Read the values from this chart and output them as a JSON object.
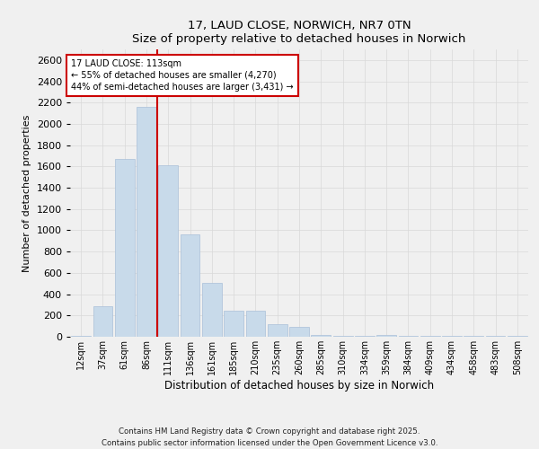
{
  "title": "17, LAUD CLOSE, NORWICH, NR7 0TN",
  "subtitle": "Size of property relative to detached houses in Norwich",
  "xlabel": "Distribution of detached houses by size in Norwich",
  "ylabel": "Number of detached properties",
  "bar_color": "#c8daea",
  "bar_edge_color": "#aac0d8",
  "categories": [
    "12sqm",
    "37sqm",
    "61sqm",
    "86sqm",
    "111sqm",
    "136sqm",
    "161sqm",
    "185sqm",
    "210sqm",
    "235sqm",
    "260sqm",
    "285sqm",
    "310sqm",
    "334sqm",
    "359sqm",
    "384sqm",
    "409sqm",
    "434sqm",
    "458sqm",
    "483sqm",
    "508sqm"
  ],
  "values": [
    10,
    290,
    1670,
    2160,
    1610,
    960,
    510,
    245,
    245,
    120,
    90,
    20,
    5,
    5,
    20,
    5,
    5,
    5,
    5,
    5,
    5
  ],
  "ylim": [
    0,
    2700
  ],
  "yticks": [
    0,
    200,
    400,
    600,
    800,
    1000,
    1200,
    1400,
    1600,
    1800,
    2000,
    2200,
    2400,
    2600
  ],
  "vline_index": 3.5,
  "vline_color": "#cc0000",
  "annotation_title": "17 LAUD CLOSE: 113sqm",
  "annotation_line1": "← 55% of detached houses are smaller (4,270)",
  "annotation_line2": "44% of semi-detached houses are larger (3,431) →",
  "annotation_box_color": "#cc0000",
  "footer_line1": "Contains HM Land Registry data © Crown copyright and database right 2025.",
  "footer_line2": "Contains public sector information licensed under the Open Government Licence v3.0.",
  "background_color": "#f0f0f0",
  "grid_color": "#d8d8d8"
}
